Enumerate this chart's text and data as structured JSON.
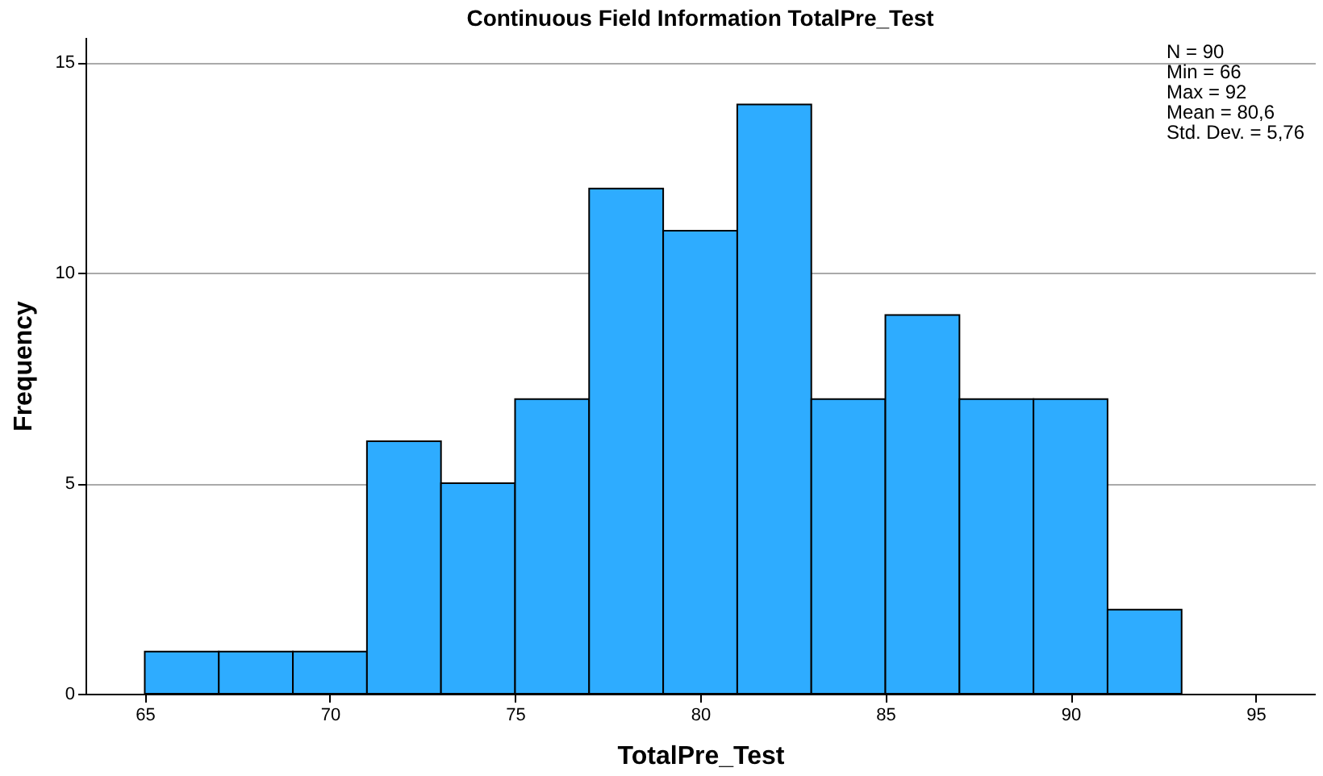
{
  "chart_data": {
    "type": "histogram",
    "title": "Continuous Field Information TotalPre_Test",
    "xlabel": "TotalPre_Test",
    "ylabel": "Frequency",
    "bins": [
      65,
      67,
      69,
      71,
      73,
      75,
      77,
      79,
      81,
      83,
      85,
      87,
      89,
      91,
      93
    ],
    "values": [
      1,
      1,
      1,
      6,
      5,
      7,
      12,
      11,
      14,
      7,
      9,
      7,
      7,
      2
    ],
    "color": "#2eacff",
    "xlim": [
      63.4,
      96.6
    ],
    "xticks": [
      65,
      70,
      75,
      80,
      85,
      90,
      95
    ],
    "ylim": [
      0,
      15.6
    ],
    "yticks": [
      0,
      5,
      10,
      15
    ],
    "grid": "y",
    "annotations": [
      "N = 90",
      "Min = 66",
      "Max = 92",
      "Mean = 80,6",
      "Std. Dev. = 5,76"
    ]
  }
}
